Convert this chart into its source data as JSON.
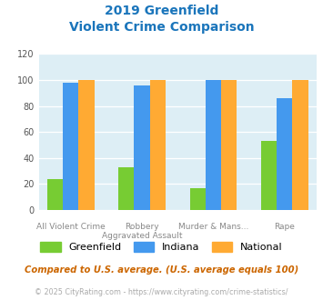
{
  "title_line1": "2019 Greenfield",
  "title_line2": "Violent Crime Comparison",
  "title_color": "#1a75bb",
  "x_labels_row1": [
    "",
    "Robbery",
    "Murder & Mans...",
    ""
  ],
  "x_labels_row2": [
    "All Violent Crime",
    "Aggravated Assault",
    "",
    "Rape"
  ],
  "greenfield": [
    24,
    33,
    17,
    53
  ],
  "indiana": [
    98,
    96,
    100,
    86
  ],
  "national": [
    100,
    100,
    100,
    100
  ],
  "color_greenfield": "#77cc33",
  "color_indiana": "#4499ee",
  "color_national": "#ffaa33",
  "ylim": [
    0,
    120
  ],
  "yticks": [
    0,
    20,
    40,
    60,
    80,
    100,
    120
  ],
  "plot_bg": "#ddeef5",
  "legend_labels": [
    "Greenfield",
    "Indiana",
    "National"
  ],
  "footnote1": "Compared to U.S. average. (U.S. average equals 100)",
  "footnote2": "© 2025 CityRating.com - https://www.cityrating.com/crime-statistics/",
  "footnote1_color": "#cc6600",
  "footnote2_color": "#aaaaaa"
}
